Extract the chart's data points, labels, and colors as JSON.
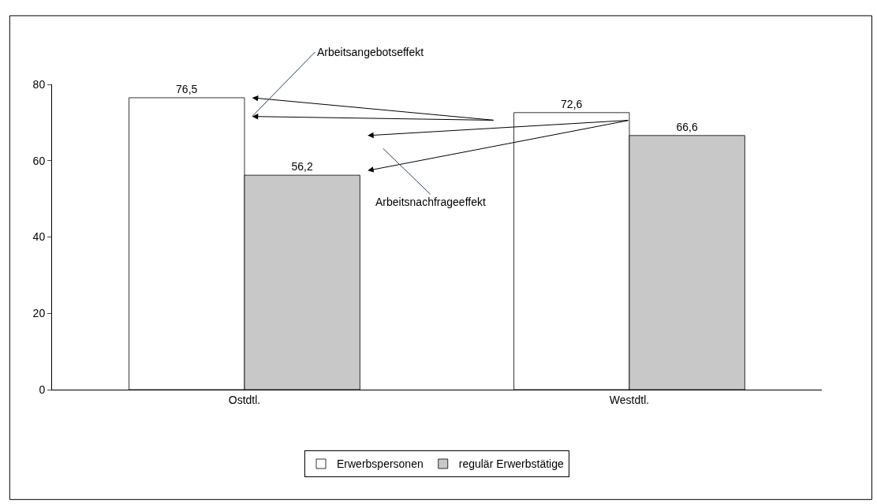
{
  "chart_data": {
    "type": "bar",
    "categories": [
      "Ostdtl.",
      "Westdtl."
    ],
    "series": [
      {
        "name": "Erwerbspersonen",
        "color": "#ffffff",
        "values": [
          76.5,
          72.6
        ],
        "value_labels": [
          "76,5",
          "72,6"
        ]
      },
      {
        "name": "regulär Erwerbstätige",
        "color": "#c8c8c8",
        "values": [
          56.2,
          66.6
        ],
        "value_labels": [
          "56,2",
          "66,6"
        ]
      }
    ],
    "ylim": [
      0,
      80
    ],
    "yticks": [
      0,
      20,
      40,
      60,
      80
    ],
    "legend": "bottom",
    "annotations": [
      "Arbeitsangebotseffekt",
      "Arbeitsnachfrageeffekt"
    ]
  }
}
